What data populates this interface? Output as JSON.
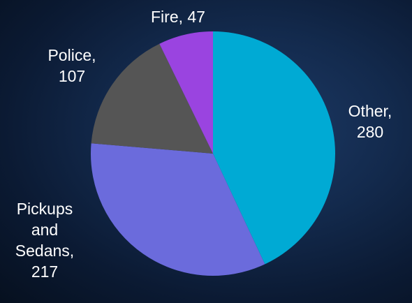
{
  "chart_data": {
    "type": "pie",
    "title": "",
    "slices": [
      {
        "label": "Other",
        "value": 280,
        "color": "#00aad4",
        "label_lines": [
          "Other,",
          "280"
        ]
      },
      {
        "label": "Pickups and Sedans",
        "value": 217,
        "color": "#6b6bdc",
        "label_lines": [
          "Pickups",
          "and",
          "Sedans,",
          "217"
        ]
      },
      {
        "label": "Police",
        "value": 107,
        "color": "#555555",
        "label_lines": [
          "Police,",
          "107"
        ]
      },
      {
        "label": "Fire",
        "value": 47,
        "color": "#9a44e0",
        "label_lines": [
          "Fire, 47"
        ]
      }
    ],
    "start_angle": "12 o'clock",
    "direction": "clockwise",
    "legend": "none",
    "data_labels": "outside"
  }
}
